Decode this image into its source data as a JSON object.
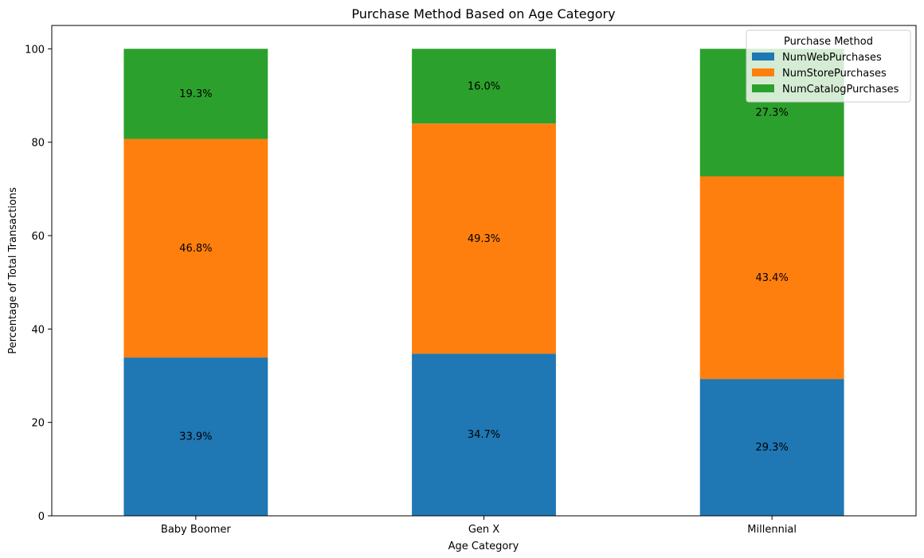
{
  "chart_data": {
    "type": "bar",
    "stacked": true,
    "title": "Purchase Method Based on Age Category",
    "xlabel": "Age Category",
    "ylabel": "Percentage of Total Transactions",
    "categories": [
      "Baby Boomer",
      "Gen X",
      "Millennial"
    ],
    "ylim": [
      0,
      105
    ],
    "yticks": [
      0,
      20,
      40,
      60,
      80,
      100
    ],
    "grid": false,
    "legend": {
      "title": "Purchase Method",
      "placement": "top-right"
    },
    "series": [
      {
        "name": "NumWebPurchases",
        "color": "#1f77b4",
        "values": [
          33.9,
          34.7,
          29.3
        ],
        "labels": [
          "33.9%",
          "34.7%",
          "29.3%"
        ]
      },
      {
        "name": "NumStorePurchases",
        "color": "#ff7f0e",
        "values": [
          46.8,
          49.3,
          43.4
        ],
        "labels": [
          "46.8%",
          "49.3%",
          "43.4%"
        ]
      },
      {
        "name": "NumCatalogPurchases",
        "color": "#2ca02c",
        "values": [
          19.3,
          16.0,
          27.3
        ],
        "labels": [
          "19.3%",
          "16.0%",
          "27.3%"
        ]
      }
    ]
  }
}
